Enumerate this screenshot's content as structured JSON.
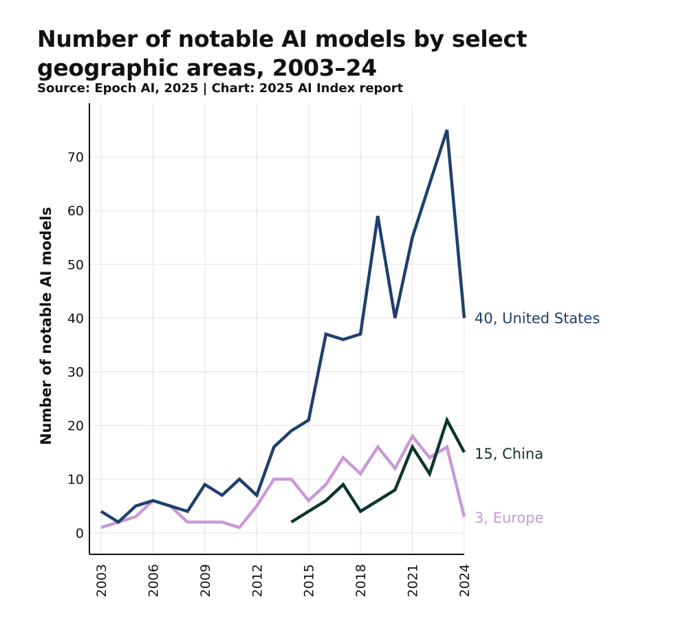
{
  "chart_data": {
    "type": "line",
    "title": "Number of notable AI models by select geographic areas, 2003–24",
    "subtitle": "Source: Epoch AI, 2025 | Chart: 2025 AI Index report",
    "xlabel": "",
    "ylabel": "Number of notable AI models",
    "x": [
      2003,
      2004,
      2005,
      2006,
      2007,
      2008,
      2009,
      2010,
      2011,
      2012,
      2013,
      2014,
      2015,
      2016,
      2017,
      2018,
      2019,
      2020,
      2021,
      2022,
      2023,
      2024
    ],
    "x_ticks": [
      "2003",
      "2006",
      "2009",
      "2012",
      "2015",
      "2018",
      "2021",
      "2024"
    ],
    "y_ticks": [
      "0",
      "10",
      "20",
      "30",
      "40",
      "50",
      "60",
      "70"
    ],
    "ylim": [
      -4,
      80
    ],
    "xlim": [
      2003,
      2024
    ],
    "grid": true,
    "series": [
      {
        "name": "United States",
        "end_label": "40, United States",
        "color": "#1f3f6e",
        "values": [
          4,
          2,
          5,
          6,
          5,
          4,
          9,
          7,
          10,
          7,
          16,
          19,
          21,
          37,
          36,
          37,
          59,
          40,
          55,
          65,
          75,
          40
        ]
      },
      {
        "name": "China",
        "end_label": "15, China",
        "color": "#0d3530",
        "values": [
          null,
          null,
          null,
          null,
          null,
          null,
          null,
          null,
          null,
          null,
          null,
          2,
          4,
          6,
          9,
          4,
          6,
          8,
          16,
          11,
          21,
          15
        ]
      },
      {
        "name": "Europe",
        "end_label": "3, Europe",
        "color": "#c999d8",
        "values": [
          1,
          2,
          3,
          6,
          5,
          2,
          2,
          2,
          1,
          5,
          10,
          10,
          6,
          9,
          14,
          11,
          16,
          12,
          18,
          14,
          16,
          3
        ]
      }
    ]
  }
}
